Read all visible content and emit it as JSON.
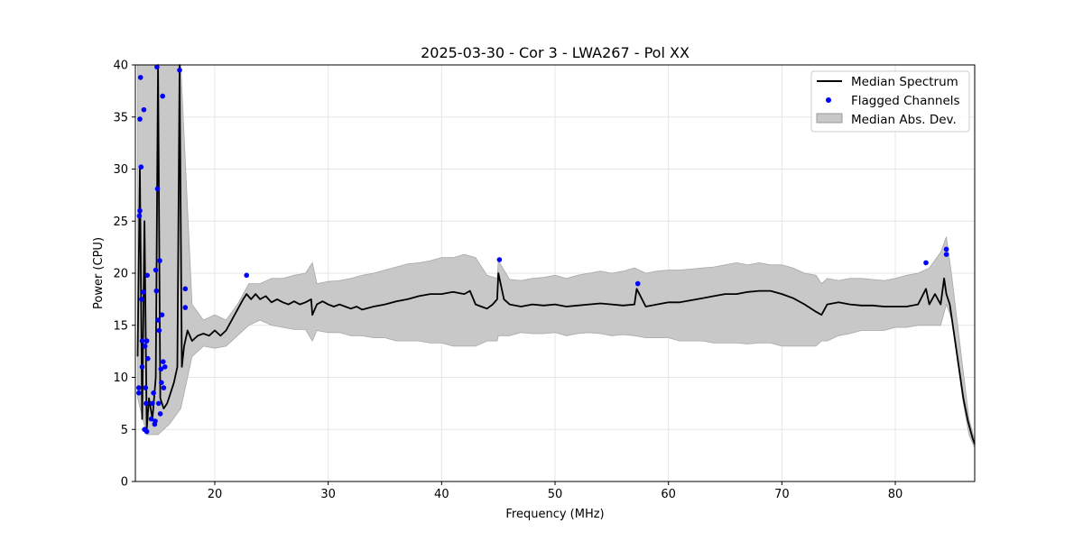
{
  "chart_data": {
    "type": "line",
    "title": "2025-03-30 - Cor 3 - LWA267 - Pol XX",
    "xlabel": "Frequency (MHz)",
    "ylabel": "Power (CPU)",
    "xlim": [
      13,
      87
    ],
    "ylim": [
      0,
      40
    ],
    "xticks": [
      20,
      30,
      40,
      50,
      60,
      70,
      80
    ],
    "yticks": [
      0,
      5,
      10,
      15,
      20,
      25,
      30,
      35,
      40
    ],
    "grid": true,
    "legend_position": "top-right",
    "legend": [
      {
        "label": "Median Spectrum",
        "kind": "line",
        "color": "#000000"
      },
      {
        "label": "Flagged Channels",
        "kind": "marker",
        "color": "#0000ff"
      },
      {
        "label": "Median Abs. Dev.",
        "kind": "patch",
        "color": "#c8c8c8"
      }
    ],
    "series": [
      {
        "name": "Median Spectrum",
        "color": "#000000",
        "x": [
          13.2,
          13.4,
          13.6,
          13.8,
          14.0,
          14.2,
          14.5,
          14.8,
          15.0,
          15.2,
          15.5,
          15.8,
          16.1,
          16.4,
          16.7,
          16.9,
          17.1,
          17.3,
          17.6,
          18.0,
          18.5,
          19.0,
          19.5,
          20.0,
          20.5,
          21.0,
          21.5,
          22.0,
          22.5,
          22.8,
          23.2,
          23.6,
          24.0,
          24.5,
          25.0,
          25.5,
          26.0,
          26.5,
          27.0,
          27.5,
          28.0,
          28.5,
          28.6,
          29.0,
          29.5,
          30.0,
          30.5,
          31.0,
          31.5,
          32.0,
          32.5,
          33.0,
          34.0,
          35.0,
          36.0,
          37.0,
          38.0,
          39.0,
          40.0,
          41.0,
          42.0,
          42.5,
          43.0,
          43.5,
          44.0,
          44.5,
          44.9,
          45.0,
          45.5,
          46.0,
          47.0,
          48.0,
          49.0,
          50.0,
          51.0,
          52.0,
          53.0,
          54.0,
          55.0,
          56.0,
          57.0,
          57.2,
          58.0,
          59.0,
          60.0,
          61.0,
          62.0,
          63.0,
          64.0,
          65.0,
          66.0,
          67.0,
          68.0,
          69.0,
          70.0,
          71.0,
          72.0,
          73.0,
          73.5,
          74.0,
          75.0,
          76.0,
          77.0,
          78.0,
          79.0,
          80.0,
          81.0,
          82.0,
          82.7,
          83.0,
          83.5,
          84.0,
          84.3,
          84.5,
          84.8,
          85.2,
          85.6,
          86.0,
          86.4,
          86.8,
          87.0
        ],
        "values": [
          12.0,
          30.0,
          6.0,
          25.0,
          5.0,
          8.0,
          6.0,
          10.0,
          40.0,
          8.0,
          7.0,
          7.5,
          8.5,
          9.5,
          11.0,
          40.0,
          11.0,
          13.0,
          14.5,
          13.5,
          14.0,
          14.2,
          14.0,
          14.5,
          14.0,
          14.5,
          15.5,
          16.5,
          17.5,
          18.0,
          17.5,
          18.0,
          17.5,
          17.8,
          17.2,
          17.5,
          17.2,
          17.0,
          17.3,
          17.0,
          17.2,
          17.5,
          16.0,
          17.0,
          17.3,
          17.0,
          16.8,
          17.0,
          16.8,
          16.6,
          16.8,
          16.5,
          16.8,
          17.0,
          17.3,
          17.5,
          17.8,
          18.0,
          18.0,
          18.2,
          18.0,
          18.3,
          17.0,
          16.8,
          16.6,
          17.0,
          17.5,
          20.0,
          17.5,
          17.0,
          16.8,
          17.0,
          16.9,
          17.0,
          16.8,
          16.9,
          17.0,
          17.1,
          17.0,
          16.9,
          17.0,
          18.5,
          16.8,
          17.0,
          17.2,
          17.2,
          17.4,
          17.6,
          17.8,
          18.0,
          18.0,
          18.2,
          18.3,
          18.3,
          18.0,
          17.6,
          17.0,
          16.3,
          16.0,
          17.0,
          17.2,
          17.0,
          16.9,
          16.9,
          16.8,
          16.8,
          16.8,
          17.0,
          18.5,
          17.0,
          18.0,
          17.0,
          19.5,
          18.0,
          17.0,
          14.0,
          11.0,
          8.0,
          5.8,
          4.2,
          3.6
        ]
      },
      {
        "name": "Median Abs. Dev.",
        "color": "#c8c8c8",
        "x": [
          13.2,
          14.0,
          15.0,
          16.0,
          17.0,
          18.0,
          19.0,
          20.0,
          21.0,
          22.0,
          23.0,
          24.0,
          25.0,
          26.0,
          27.0,
          28.0,
          28.6,
          29.0,
          30.0,
          31.0,
          32.0,
          33.0,
          34.0,
          35.0,
          36.0,
          37.0,
          38.0,
          39.0,
          40.0,
          41.0,
          42.0,
          43.0,
          44.0,
          44.9,
          45.0,
          46.0,
          47.0,
          48.0,
          49.0,
          50.0,
          51.0,
          52.0,
          53.0,
          54.0,
          55.0,
          56.0,
          57.0,
          58.0,
          59.0,
          60.0,
          61.0,
          62.0,
          63.0,
          64.0,
          65.0,
          66.0,
          67.0,
          68.0,
          69.0,
          70.0,
          71.0,
          72.0,
          73.0,
          73.5,
          74.0,
          75.0,
          76.0,
          77.0,
          78.0,
          79.0,
          80.0,
          81.0,
          82.0,
          83.0,
          84.0,
          84.5,
          85.0,
          85.5,
          86.0,
          86.5,
          87.0
        ],
        "upper": [
          40.0,
          40.0,
          40.0,
          40.0,
          40.0,
          17.0,
          15.5,
          16.0,
          15.5,
          17.0,
          19.0,
          19.0,
          19.5,
          19.5,
          19.8,
          20.0,
          21.0,
          19.0,
          19.2,
          19.3,
          19.5,
          19.8,
          20.0,
          20.3,
          20.6,
          20.9,
          21.0,
          21.2,
          21.5,
          21.5,
          21.8,
          21.5,
          19.8,
          19.5,
          21.2,
          19.4,
          19.3,
          19.5,
          19.6,
          19.8,
          19.5,
          19.8,
          20.0,
          20.2,
          20.0,
          20.2,
          20.5,
          20.0,
          20.2,
          20.3,
          20.3,
          20.4,
          20.5,
          20.6,
          20.8,
          21.0,
          20.8,
          21.0,
          20.8,
          20.8,
          20.5,
          20.0,
          19.8,
          19.0,
          19.5,
          19.3,
          19.5,
          19.5,
          19.4,
          19.3,
          19.5,
          19.8,
          20.0,
          20.5,
          22.0,
          23.5,
          19.5,
          15.0,
          10.5,
          6.0,
          4.0
        ],
        "lower": [
          8.0,
          4.5,
          4.5,
          5.5,
          7.0,
          12.0,
          13.0,
          12.8,
          13.0,
          14.0,
          15.0,
          15.5,
          15.0,
          14.8,
          14.6,
          14.6,
          13.5,
          14.5,
          14.3,
          14.3,
          14.0,
          14.0,
          13.8,
          13.8,
          13.5,
          13.5,
          13.5,
          13.3,
          13.3,
          13.0,
          13.0,
          13.0,
          13.5,
          13.5,
          14.0,
          14.0,
          14.3,
          14.2,
          14.2,
          14.3,
          14.0,
          14.2,
          14.3,
          14.2,
          14.0,
          14.1,
          14.0,
          13.8,
          13.8,
          13.8,
          13.5,
          13.5,
          13.5,
          13.3,
          13.3,
          13.3,
          13.2,
          13.3,
          13.3,
          13.0,
          13.0,
          13.0,
          13.0,
          13.5,
          13.5,
          14.0,
          14.2,
          14.5,
          14.5,
          14.5,
          14.8,
          14.8,
          15.0,
          15.0,
          15.0,
          17.0,
          15.5,
          11.5,
          7.5,
          4.5,
          3.2
        ]
      },
      {
        "name": "Flagged Channels",
        "color": "#0000ff",
        "points": [
          [
            13.3,
            8.5
          ],
          [
            13.3,
            9.0
          ],
          [
            13.35,
            25.5
          ],
          [
            13.4,
            34.8
          ],
          [
            13.4,
            26.0
          ],
          [
            13.45,
            38.8
          ],
          [
            13.5,
            30.2
          ],
          [
            13.55,
            17.5
          ],
          [
            13.6,
            11.0
          ],
          [
            13.6,
            13.5
          ],
          [
            13.7,
            18.2
          ],
          [
            13.75,
            35.7
          ],
          [
            13.8,
            5.0
          ],
          [
            13.85,
            13.0
          ],
          [
            13.9,
            9.0
          ],
          [
            13.95,
            7.5
          ],
          [
            14.0,
            4.8
          ],
          [
            14.0,
            13.5
          ],
          [
            14.05,
            19.8
          ],
          [
            14.1,
            11.8
          ],
          [
            14.4,
            6.0
          ],
          [
            14.5,
            7.5
          ],
          [
            14.6,
            8.5
          ],
          [
            14.7,
            5.5
          ],
          [
            14.75,
            5.8
          ],
          [
            14.8,
            20.3
          ],
          [
            14.85,
            18.3
          ],
          [
            14.9,
            39.8
          ],
          [
            14.95,
            28.1
          ],
          [
            15.0,
            15.5
          ],
          [
            15.05,
            7.5
          ],
          [
            15.1,
            14.5
          ],
          [
            15.15,
            21.2
          ],
          [
            15.2,
            6.5
          ],
          [
            15.25,
            10.8
          ],
          [
            15.3,
            9.5
          ],
          [
            15.35,
            16.0
          ],
          [
            15.4,
            37.0
          ],
          [
            15.45,
            11.5
          ],
          [
            15.5,
            9.0
          ],
          [
            15.6,
            11.0
          ],
          [
            16.9,
            39.5
          ],
          [
            17.4,
            18.5
          ],
          [
            17.4,
            16.7
          ],
          [
            22.8,
            19.8
          ],
          [
            45.1,
            21.3
          ],
          [
            57.3,
            19.0
          ],
          [
            82.7,
            21.0
          ],
          [
            84.5,
            22.3
          ],
          [
            84.5,
            21.8
          ]
        ]
      }
    ]
  }
}
